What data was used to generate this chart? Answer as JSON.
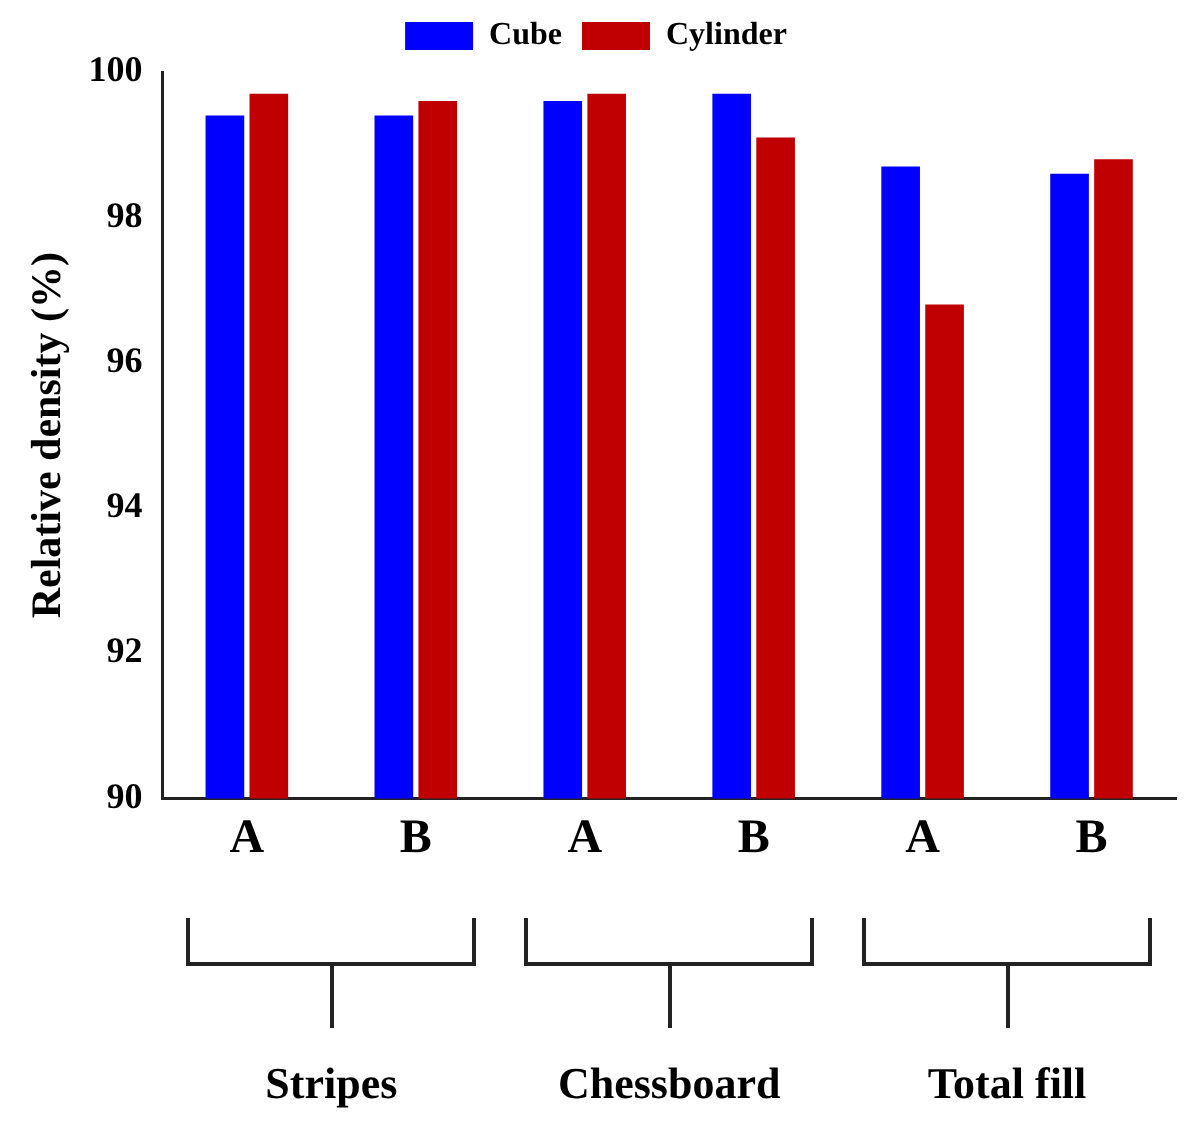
{
  "chart_data": {
    "type": "bar",
    "ylabel": "Relative density (%)",
    "categories": [
      "A",
      "B",
      "A",
      "B",
      "A",
      "B"
    ],
    "series": [
      {
        "name": "Cube",
        "color": "#0000ff",
        "values": [
          99.4,
          99.4,
          99.6,
          99.7,
          98.7,
          98.6
        ]
      },
      {
        "name": "Cylinder",
        "color": "#c00000",
        "values": [
          99.7,
          99.6,
          99.7,
          99.1,
          96.8,
          98.8
        ]
      }
    ],
    "ylim": [
      90,
      100
    ],
    "yticks": [
      90,
      92,
      94,
      96,
      98,
      100
    ],
    "grid": false,
    "legend": "top",
    "annotations": [
      "Stripes",
      "Chessboard",
      "Total fill"
    ]
  }
}
